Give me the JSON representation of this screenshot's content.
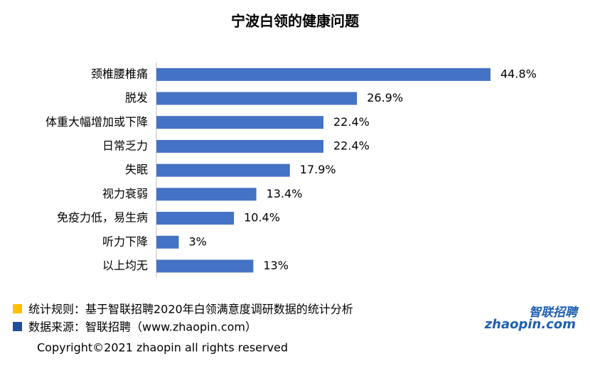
{
  "chart_data": {
    "type": "bar",
    "orientation": "horizontal",
    "title": "宁波白领的健康问题",
    "categories": [
      "颈椎腰椎痛",
      "脱发",
      "体重大幅增加或下降",
      "日常乏力",
      "失眠",
      "视力衰弱",
      "免疫力低，易生病",
      "听力下降",
      "以上均无"
    ],
    "values": [
      44.8,
      26.9,
      22.4,
      22.4,
      17.9,
      13.4,
      10.4,
      3,
      13
    ],
    "value_labels": [
      "44.8%",
      "26.9%",
      "22.4%",
      "22.4%",
      "17.9%",
      "13.4%",
      "10.4%",
      "3%",
      "13%"
    ],
    "color": "#4472c4"
  },
  "notes": [
    "统计规则：基于智联招聘2020年白领满意度调研数据的统计分析",
    "数据来源：智联招聘（www.zhaopin.com）"
  ],
  "copyright": "Copyright©2021 zhaopin all rights reserved",
  "logo": {
    "name": "智联招聘",
    "site": "zhaopin.com"
  }
}
